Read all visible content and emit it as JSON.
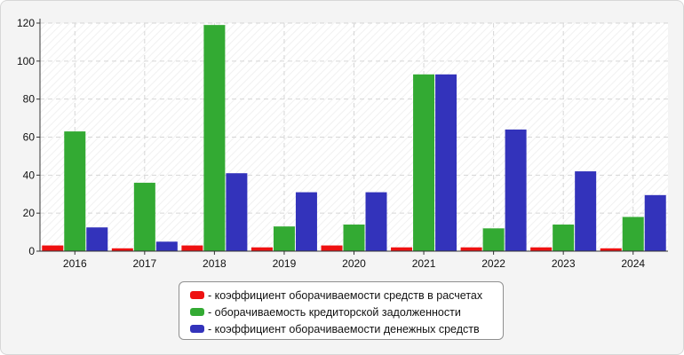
{
  "chart_data": {
    "type": "bar",
    "title": "",
    "xlabel": "",
    "ylabel": "",
    "ylim": [
      0,
      120
    ],
    "yticks": [
      0,
      20,
      40,
      60,
      80,
      100,
      120
    ],
    "grid": true,
    "legend_position": "bottom-center",
    "categories": [
      "2016",
      "2017",
      "2018",
      "2019",
      "2020",
      "2021",
      "2022",
      "2023",
      "2024"
    ],
    "series": [
      {
        "name": "- коэффициент оборачиваемости средств в расчетах",
        "color": "#ee1111",
        "values": [
          3,
          1.5,
          3,
          2,
          3,
          2,
          2,
          2,
          1.5
        ]
      },
      {
        "name": "- оборачиваемость кредиторской задолженности",
        "color": "#33aa33",
        "values": [
          63,
          36,
          119,
          13,
          14,
          93,
          12,
          14,
          18
        ]
      },
      {
        "name": "- коэффициент оборачиваемости денежных средств",
        "color": "#3333bb",
        "values": [
          12.5,
          5,
          41,
          31,
          31,
          93,
          64,
          42,
          29.5
        ]
      }
    ]
  }
}
